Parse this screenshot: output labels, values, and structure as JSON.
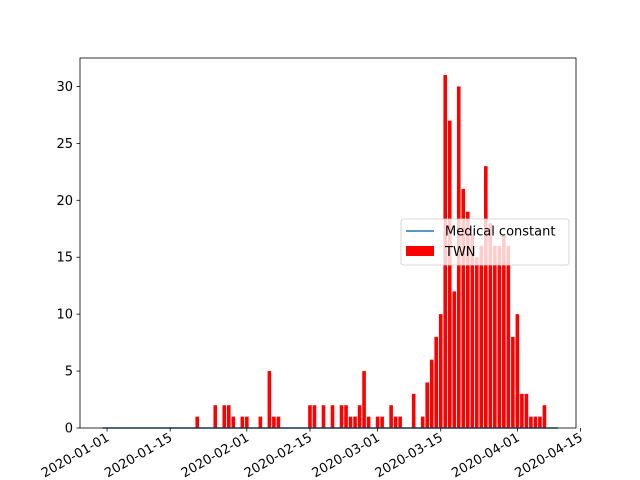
{
  "chart_data": {
    "type": "bar",
    "x_type": "date",
    "xlim": [
      "2019-12-26",
      "2020-04-14"
    ],
    "ylim": [
      0,
      32.5
    ],
    "grid": false,
    "legend_position": "center-right",
    "xticks": [
      "2020-01-01",
      "2020-01-15",
      "2020-02-01",
      "2020-02-15",
      "2020-03-01",
      "2020-03-15",
      "2020-04-01",
      "2020-04-15"
    ],
    "xtick_labels": [
      "2020-01-01",
      "2020-01-15",
      "2020-02-01",
      "2020-02-15",
      "2020-03-01",
      "2020-03-15",
      "2020-04-01",
      "2020-04-15"
    ],
    "yticks": [
      0,
      5,
      10,
      15,
      20,
      25,
      30
    ],
    "ytick_labels": [
      "0",
      "5",
      "10",
      "15",
      "20",
      "25",
      "30"
    ],
    "series": [
      {
        "name": "Medical constant",
        "type": "line",
        "color": "#1f77b4",
        "x": [
          "2019-12-31",
          "2020-04-10"
        ],
        "y": [
          0,
          0
        ]
      },
      {
        "name": "TWN",
        "type": "bar",
        "color": "#ff0000",
        "x": [
          "2020-01-21",
          "2020-01-25",
          "2020-01-27",
          "2020-01-28",
          "2020-01-29",
          "2020-01-31",
          "2020-02-01",
          "2020-02-04",
          "2020-02-06",
          "2020-02-07",
          "2020-02-08",
          "2020-02-15",
          "2020-02-16",
          "2020-02-18",
          "2020-02-20",
          "2020-02-22",
          "2020-02-23",
          "2020-02-24",
          "2020-02-25",
          "2020-02-26",
          "2020-02-27",
          "2020-02-28",
          "2020-03-01",
          "2020-03-02",
          "2020-03-04",
          "2020-03-05",
          "2020-03-06",
          "2020-03-09",
          "2020-03-11",
          "2020-03-12",
          "2020-03-13",
          "2020-03-14",
          "2020-03-15",
          "2020-03-16",
          "2020-03-17",
          "2020-03-18",
          "2020-03-19",
          "2020-03-20",
          "2020-03-21",
          "2020-03-22",
          "2020-03-23",
          "2020-03-24",
          "2020-03-25",
          "2020-03-26",
          "2020-03-27",
          "2020-03-28",
          "2020-03-29",
          "2020-03-30",
          "2020-03-31",
          "2020-04-01",
          "2020-04-02",
          "2020-04-03",
          "2020-04-04",
          "2020-04-05",
          "2020-04-06",
          "2020-04-07",
          "2020-04-08",
          "2020-04-09"
        ],
        "y": [
          1,
          2,
          2,
          2,
          1,
          1,
          1,
          1,
          5,
          1,
          1,
          2,
          2,
          2,
          2,
          2,
          2,
          1,
          1,
          2,
          5,
          1,
          1,
          1,
          2,
          1,
          1,
          3,
          1,
          4,
          6,
          8,
          10,
          31,
          27,
          12,
          30,
          21,
          19,
          17,
          15,
          16,
          23,
          18,
          16,
          16,
          17,
          16,
          8,
          10,
          3,
          3,
          1,
          1,
          1,
          2,
          0,
          0
        ]
      }
    ]
  }
}
